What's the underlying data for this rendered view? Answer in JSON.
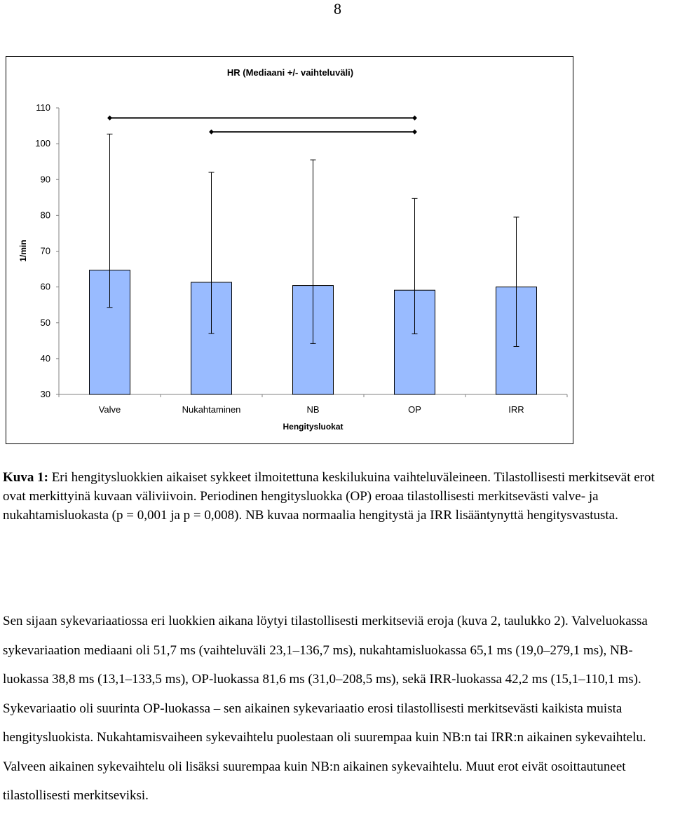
{
  "page_number": "8",
  "chart_data": {
    "type": "bar",
    "title": "HR (Mediaani +/- vaihteluväli)",
    "xlabel": "Hengitysluokat",
    "ylabel": "1/min",
    "ylim": [
      30,
      110
    ],
    "yticks": [
      "110",
      "100",
      "90",
      "80",
      "70",
      "60",
      "50",
      "40",
      "30"
    ],
    "categories": [
      "Valve",
      "Nukahtaminen",
      "NB",
      "OP",
      "IRR"
    ],
    "values": [
      64.7,
      61.3,
      60.4,
      59.1,
      60.0
    ],
    "err_high": [
      102.7,
      92.0,
      95.5,
      84.7,
      79.5
    ],
    "err_low": [
      54.3,
      47.0,
      44.2,
      46.9,
      43.4
    ],
    "grid": false,
    "bar_color": "#99bbff",
    "significance_lines": [
      {
        "from": "Valve",
        "to": "OP",
        "y": 107.2
      },
      {
        "from": "Nukahtaminen",
        "to": "OP",
        "y": 103.3
      }
    ]
  },
  "caption": {
    "label": "Kuva 1:",
    "text": " Eri hengitysluokkien aikaiset sykkeet ilmoitettuna keskilukuina vaihteluväleineen. Tilastollisesti merkitsevät erot ovat merkittyinä kuvaan väliviivoin. Periodinen hengitysluokka (OP) eroaa tilastollisesti merkitsevästi valve- ja nukahtamisluokasta (p = 0,001 ja p = 0,008). NB kuvaa normaalia hengitystä ja IRR lisääntynyttä hengitysvastusta."
  },
  "body_text": "Sen sijaan sykevariaatiossa eri luokkien aikana löytyi tilastollisesti merkitseviä eroja (kuva 2, taulukko 2). Valveluokassa sykevariaation mediaani oli 51,7 ms (vaihteluväli 23,1–136,7 ms), nukahtamisluokassa 65,1 ms (19,0–279,1 ms), NB-luokassa 38,8 ms (13,1–133,5 ms), OP-luokassa 81,6 ms (31,0–208,5 ms), sekä IRR-luokassa 42,2 ms (15,1–110,1 ms). Sykevariaatio oli suurinta OP-luokassa – sen aikainen sykevariaatio erosi tilastollisesti merkitsevästi kaikista muista hengitysluokista. Nukahtamisvaiheen sykevaihtelu puolestaan oli suurempaa kuin NB:n tai IRR:n aikainen sykevaihtelu. Valveen aikainen sykevaihtelu oli lisäksi suurempaa kuin NB:n aikainen sykevaihtelu. Muut erot eivät osoittautuneet tilastollisesti merkitseviksi."
}
